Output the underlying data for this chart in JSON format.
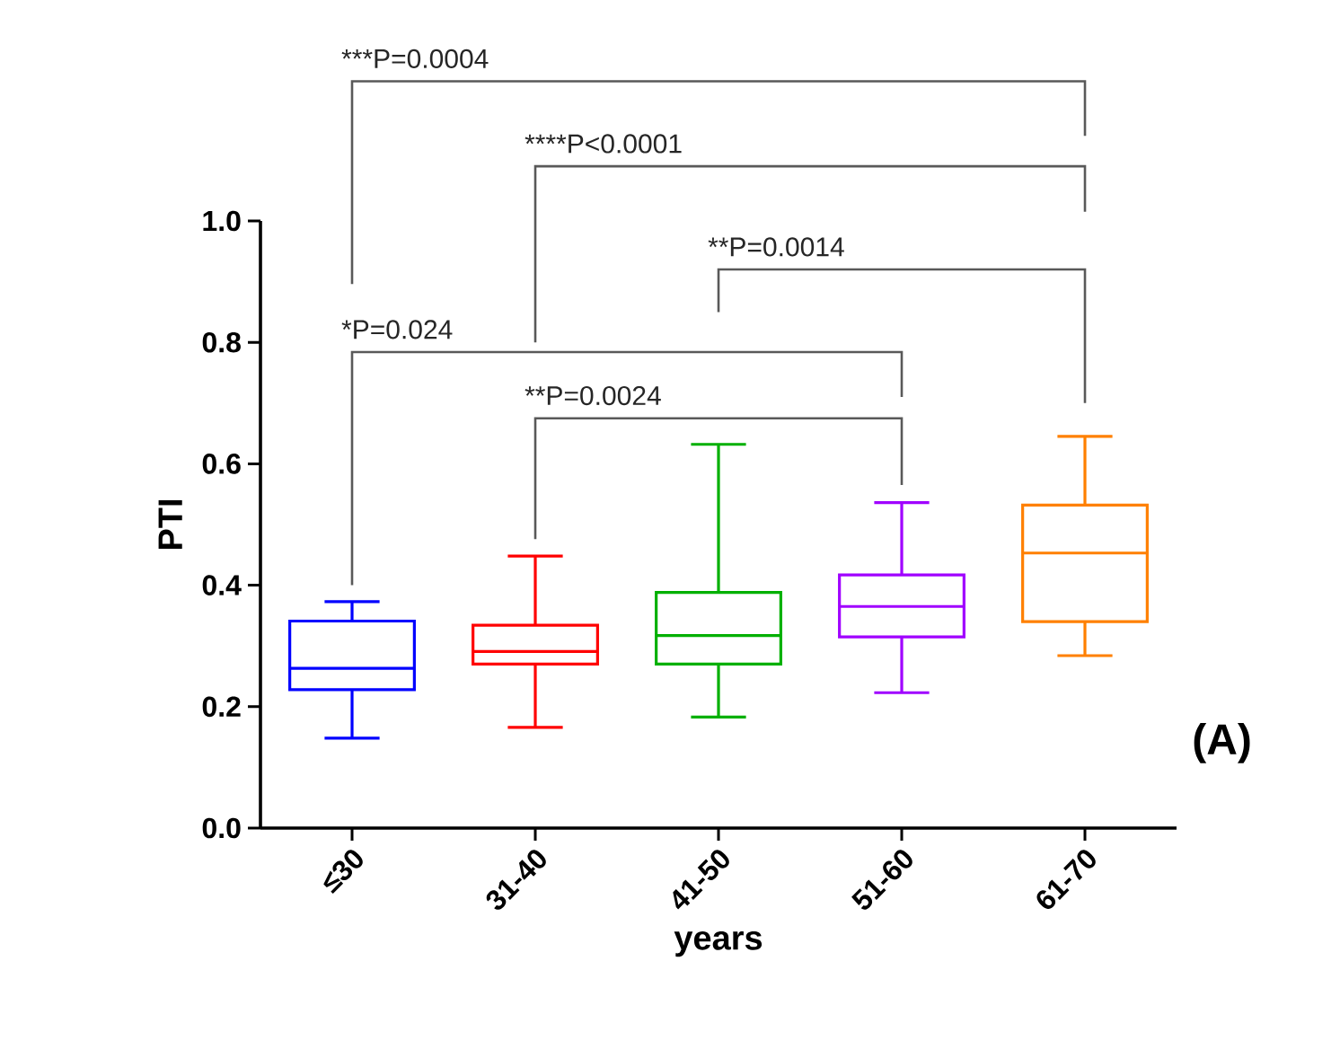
{
  "chart_data": {
    "type": "box",
    "xlabel": "years",
    "ylabel": "PTI",
    "categories": [
      "≤30",
      "31-40",
      "41-50",
      "51-60",
      "61-70"
    ],
    "boxes": [
      {
        "low": 0.148,
        "q1": 0.228,
        "median": 0.263,
        "q3": 0.341,
        "high": 0.373
      },
      {
        "low": 0.166,
        "q1": 0.27,
        "median": 0.291,
        "q3": 0.334,
        "high": 0.448
      },
      {
        "low": 0.183,
        "q1": 0.27,
        "median": 0.317,
        "q3": 0.388,
        "high": 0.632
      },
      {
        "low": 0.223,
        "q1": 0.315,
        "median": 0.365,
        "q3": 0.417,
        "high": 0.536
      },
      {
        "low": 0.284,
        "q1": 0.34,
        "median": 0.453,
        "q3": 0.532,
        "high": 0.645
      }
    ],
    "colors": [
      "#0000ff",
      "#ff0000",
      "#00b000",
      "#a000ff",
      "#ff8000"
    ],
    "ylim": [
      0,
      1.0
    ],
    "yticks": [
      {
        "value": 0,
        "label": "0.0"
      },
      {
        "value": 0.2,
        "label": "0.2"
      },
      {
        "value": 0.4,
        "label": "0.4"
      },
      {
        "value": 0.6,
        "label": "0.6"
      },
      {
        "value": 0.8,
        "label": "0.8"
      },
      {
        "value": 1.0,
        "label": "1.0"
      }
    ],
    "annotations": [
      "***P=0.0004",
      "****P<0.0001",
      "**P=0.0014",
      "*P=0.024",
      "**P=0.0024",
      "(A)"
    ]
  }
}
